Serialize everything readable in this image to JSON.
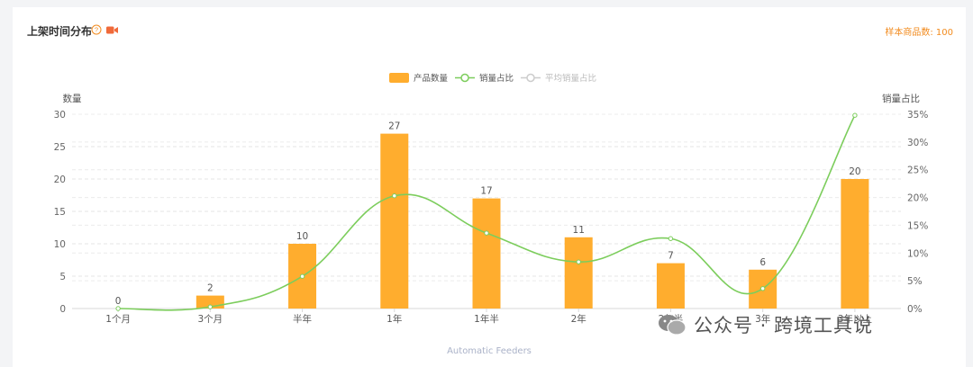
{
  "header": {
    "title": "上架时间分布",
    "sample_count": "样本商品数: 100"
  },
  "legend": {
    "items": [
      "产品数量",
      "销量占比",
      "平均销量占比"
    ]
  },
  "watermark": {
    "text": "公众号 · 跨境工具说"
  },
  "chart_data": {
    "type": "bar",
    "categories": [
      "1个月",
      "3个月",
      "半年",
      "1年",
      "1年半",
      "2年",
      "2年半",
      "3年",
      "3年以上"
    ],
    "series": [
      {
        "name": "产品数量",
        "type": "bar",
        "axis": "left",
        "values": [
          0,
          2,
          10,
          27,
          17,
          11,
          7,
          6,
          20
        ],
        "color": "#ffad2e"
      },
      {
        "name": "销量占比",
        "type": "line",
        "axis": "right",
        "values": [
          0,
          0.3,
          5.8,
          20.3,
          13.6,
          8.4,
          12.6,
          3.6,
          34.8
        ],
        "color": "#7ccd5c"
      }
    ],
    "ylabel_left": "数量",
    "ylabel_right": "销量占比",
    "yticks_left": [
      "0",
      "5",
      "10",
      "15",
      "20",
      "25",
      "30"
    ],
    "yticks_right": [
      "0%",
      "5%",
      "10%",
      "15%",
      "20%",
      "25%",
      "30%",
      "35%"
    ],
    "ylim_left": [
      0,
      30
    ],
    "ylim_right": [
      0,
      35
    ],
    "xlabel": "Automatic Feeders",
    "grid": true,
    "legend_position": "top-center"
  }
}
